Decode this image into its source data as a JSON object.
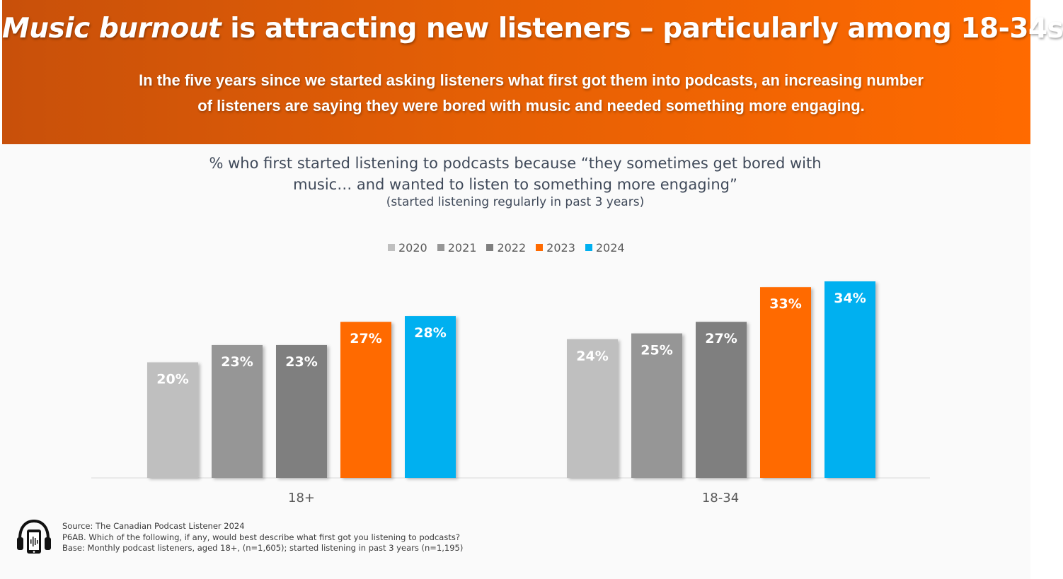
{
  "header": {
    "title_emphasis": "Music burnout",
    "title_rest": " is attracting new listeners – particularly among 18-34s",
    "subtitle_line1": "In the five years since we started asking listeners what first got them into podcasts, an increasing number",
    "subtitle_line2": "of listeners are saying they were bored with music and needed something more engaging."
  },
  "chart_data": {
    "type": "bar",
    "title_line1": "% who first started listening to podcasts because “they sometimes get bored with",
    "title_line2": "music… and wanted to listen to something more engaging”",
    "subtitle": "(started listening regularly in past 3 years)",
    "categories": [
      "18+",
      "18-34"
    ],
    "series": [
      {
        "name": "2020",
        "color": "#bfbfbf",
        "values": [
          20,
          24
        ],
        "labels": [
          "20%",
          "24%"
        ]
      },
      {
        "name": "2021",
        "color": "#969696",
        "values": [
          23,
          25
        ],
        "labels": [
          "23%",
          "25%"
        ]
      },
      {
        "name": "2022",
        "color": "#7f7f7f",
        "values": [
          23,
          27
        ],
        "labels": [
          "23%",
          "27%"
        ]
      },
      {
        "name": "2023",
        "color": "#ff6a00",
        "values": [
          27,
          33
        ],
        "labels": [
          "27%",
          "33%"
        ]
      },
      {
        "name": "2024",
        "color": "#00b0f0",
        "values": [
          28,
          34
        ],
        "labels": [
          "28%",
          "34%"
        ]
      }
    ],
    "xlabel": "",
    "ylabel": "",
    "ylim": [
      0,
      35
    ],
    "legend_position": "top-center",
    "grid": false
  },
  "footer": {
    "source": "Source: The Canadian Podcast Listener 2024",
    "question": "P6AB. Which of the following, if any, would best describe what first got you listening to podcasts?",
    "base": "Base: Monthly podcast listeners, aged 18+, (n=1,605); started listening in past 3 years (n=1,195)"
  },
  "icons": {
    "logo": "headphones-phone-icon"
  }
}
